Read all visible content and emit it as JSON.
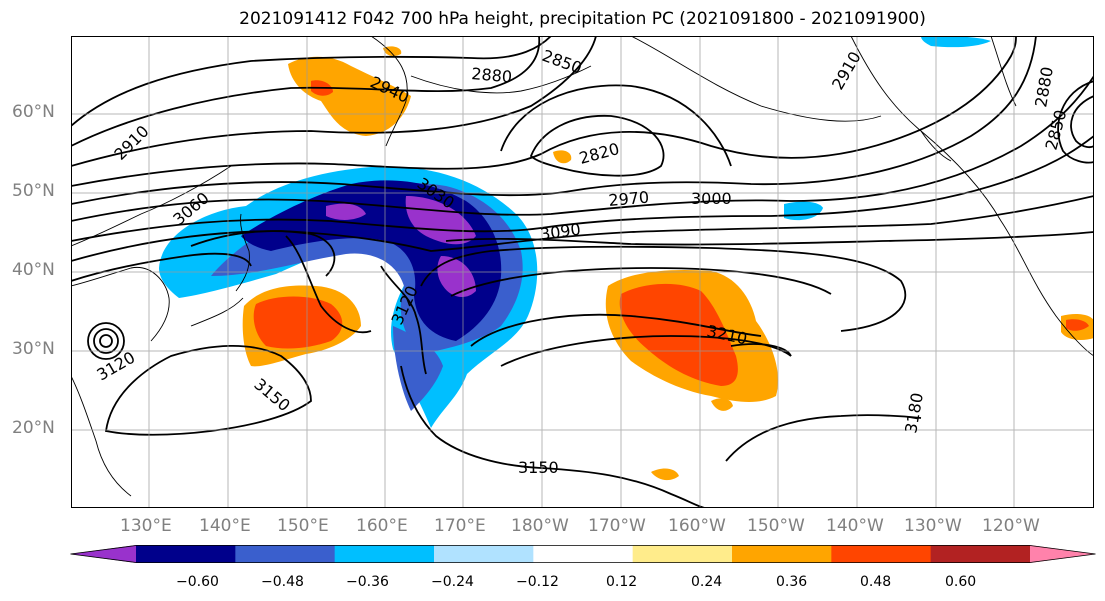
{
  "title": "2021091412 F042 700 hPa height, precipitation PC (2021091800 - 2021091900)",
  "map_axes": {
    "lat_labels": [
      "60°N",
      "50°N",
      "40°N",
      "30°N",
      "20°N"
    ],
    "lon_labels": [
      "130°E",
      "140°E",
      "150°E",
      "160°E",
      "170°E",
      "180°W",
      "170°W",
      "160°W",
      "150°W",
      "140°W",
      "130°W",
      "120°W"
    ]
  },
  "contour_labels": [
    "2850",
    "2880",
    "2940",
    "2910",
    "2820",
    "2970",
    "3000",
    "3030",
    "3060",
    "3090",
    "3120",
    "3150",
    "3210",
    "3180",
    "3150",
    "2910",
    "2850",
    "2880",
    "3120"
  ],
  "colorbar": {
    "colors": [
      "#9932cc",
      "#00008b",
      "#3a5fcd",
      "#00bfff",
      "#b0e2ff",
      "#ffffff",
      "#ffec8b",
      "#ffa500",
      "#ff4500",
      "#b22222",
      "#ff82ab"
    ],
    "tick_labels": [
      "−0.60",
      "−0.48",
      "−0.36",
      "−0.24",
      "−0.12",
      "0.12",
      "0.24",
      "0.36",
      "0.48",
      "0.60"
    ]
  }
}
